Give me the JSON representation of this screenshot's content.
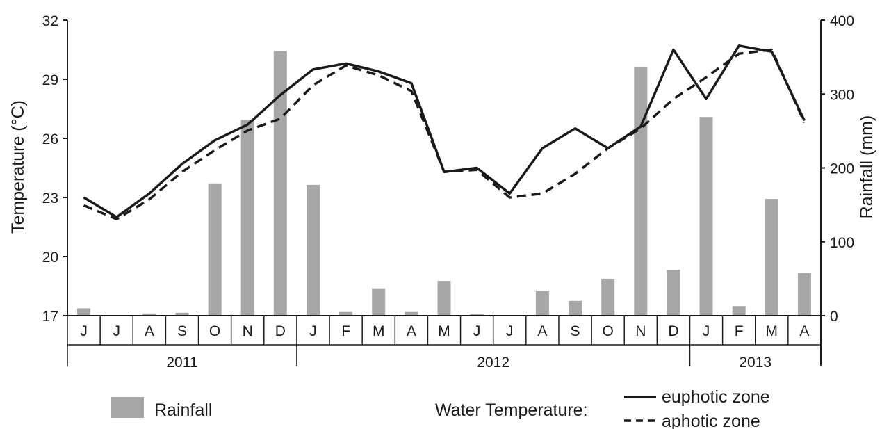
{
  "chart_data": {
    "type": "bar+line",
    "categories": [
      "J",
      "J",
      "A",
      "S",
      "O",
      "N",
      "D",
      "J",
      "F",
      "M",
      "A",
      "M",
      "J",
      "J",
      "A",
      "S",
      "O",
      "N",
      "D",
      "J",
      "F",
      "M",
      "A"
    ],
    "years": [
      {
        "label": "2011",
        "months": 7
      },
      {
        "label": "2012",
        "months": 12
      },
      {
        "label": "2013",
        "months": 4
      }
    ],
    "rainfall": {
      "name": "Rainfall",
      "color": "#a6a6a6",
      "values": [
        10,
        0,
        3,
        4,
        179,
        265,
        358,
        177,
        5,
        37,
        5,
        47,
        2,
        0,
        33,
        20,
        50,
        337,
        62,
        269,
        13,
        158,
        58
      ]
    },
    "temperature": [
      {
        "name": "euphotic zone",
        "style": "solid",
        "color": "#1a1a1a",
        "values": [
          23.0,
          22.0,
          23.2,
          24.7,
          25.9,
          26.7,
          28.2,
          29.5,
          29.8,
          29.4,
          28.8,
          24.3,
          24.5,
          23.2,
          25.5,
          26.5,
          25.5,
          26.6,
          30.5,
          28.0,
          30.7,
          30.4,
          26.9
        ]
      },
      {
        "name": "aphotic zone",
        "style": "dashed",
        "color": "#1a1a1a",
        "values": [
          22.6,
          21.9,
          22.9,
          24.3,
          25.4,
          26.4,
          27.0,
          28.7,
          29.7,
          29.2,
          28.4,
          24.3,
          24.4,
          23.0,
          23.2,
          24.2,
          25.5,
          26.5,
          28.0,
          29.1,
          30.3,
          30.5,
          26.8
        ]
      }
    ],
    "y_left": {
      "label": "Temperature (°C)",
      "ylim": [
        17,
        32
      ],
      "ticks": [
        17,
        20,
        23,
        26,
        29,
        32
      ]
    },
    "y_right": {
      "label": "Rainfall (mm)",
      "ylim": [
        0,
        400
      ],
      "ticks": [
        0,
        100,
        200,
        300,
        400
      ]
    },
    "legend": {
      "rainfall_label": "Rainfall",
      "temperature_prefix": "Water Temperature:",
      "euphotic_label": "euphotic zone",
      "aphotic_label": "aphotic zone",
      "placement": "bottom"
    }
  }
}
